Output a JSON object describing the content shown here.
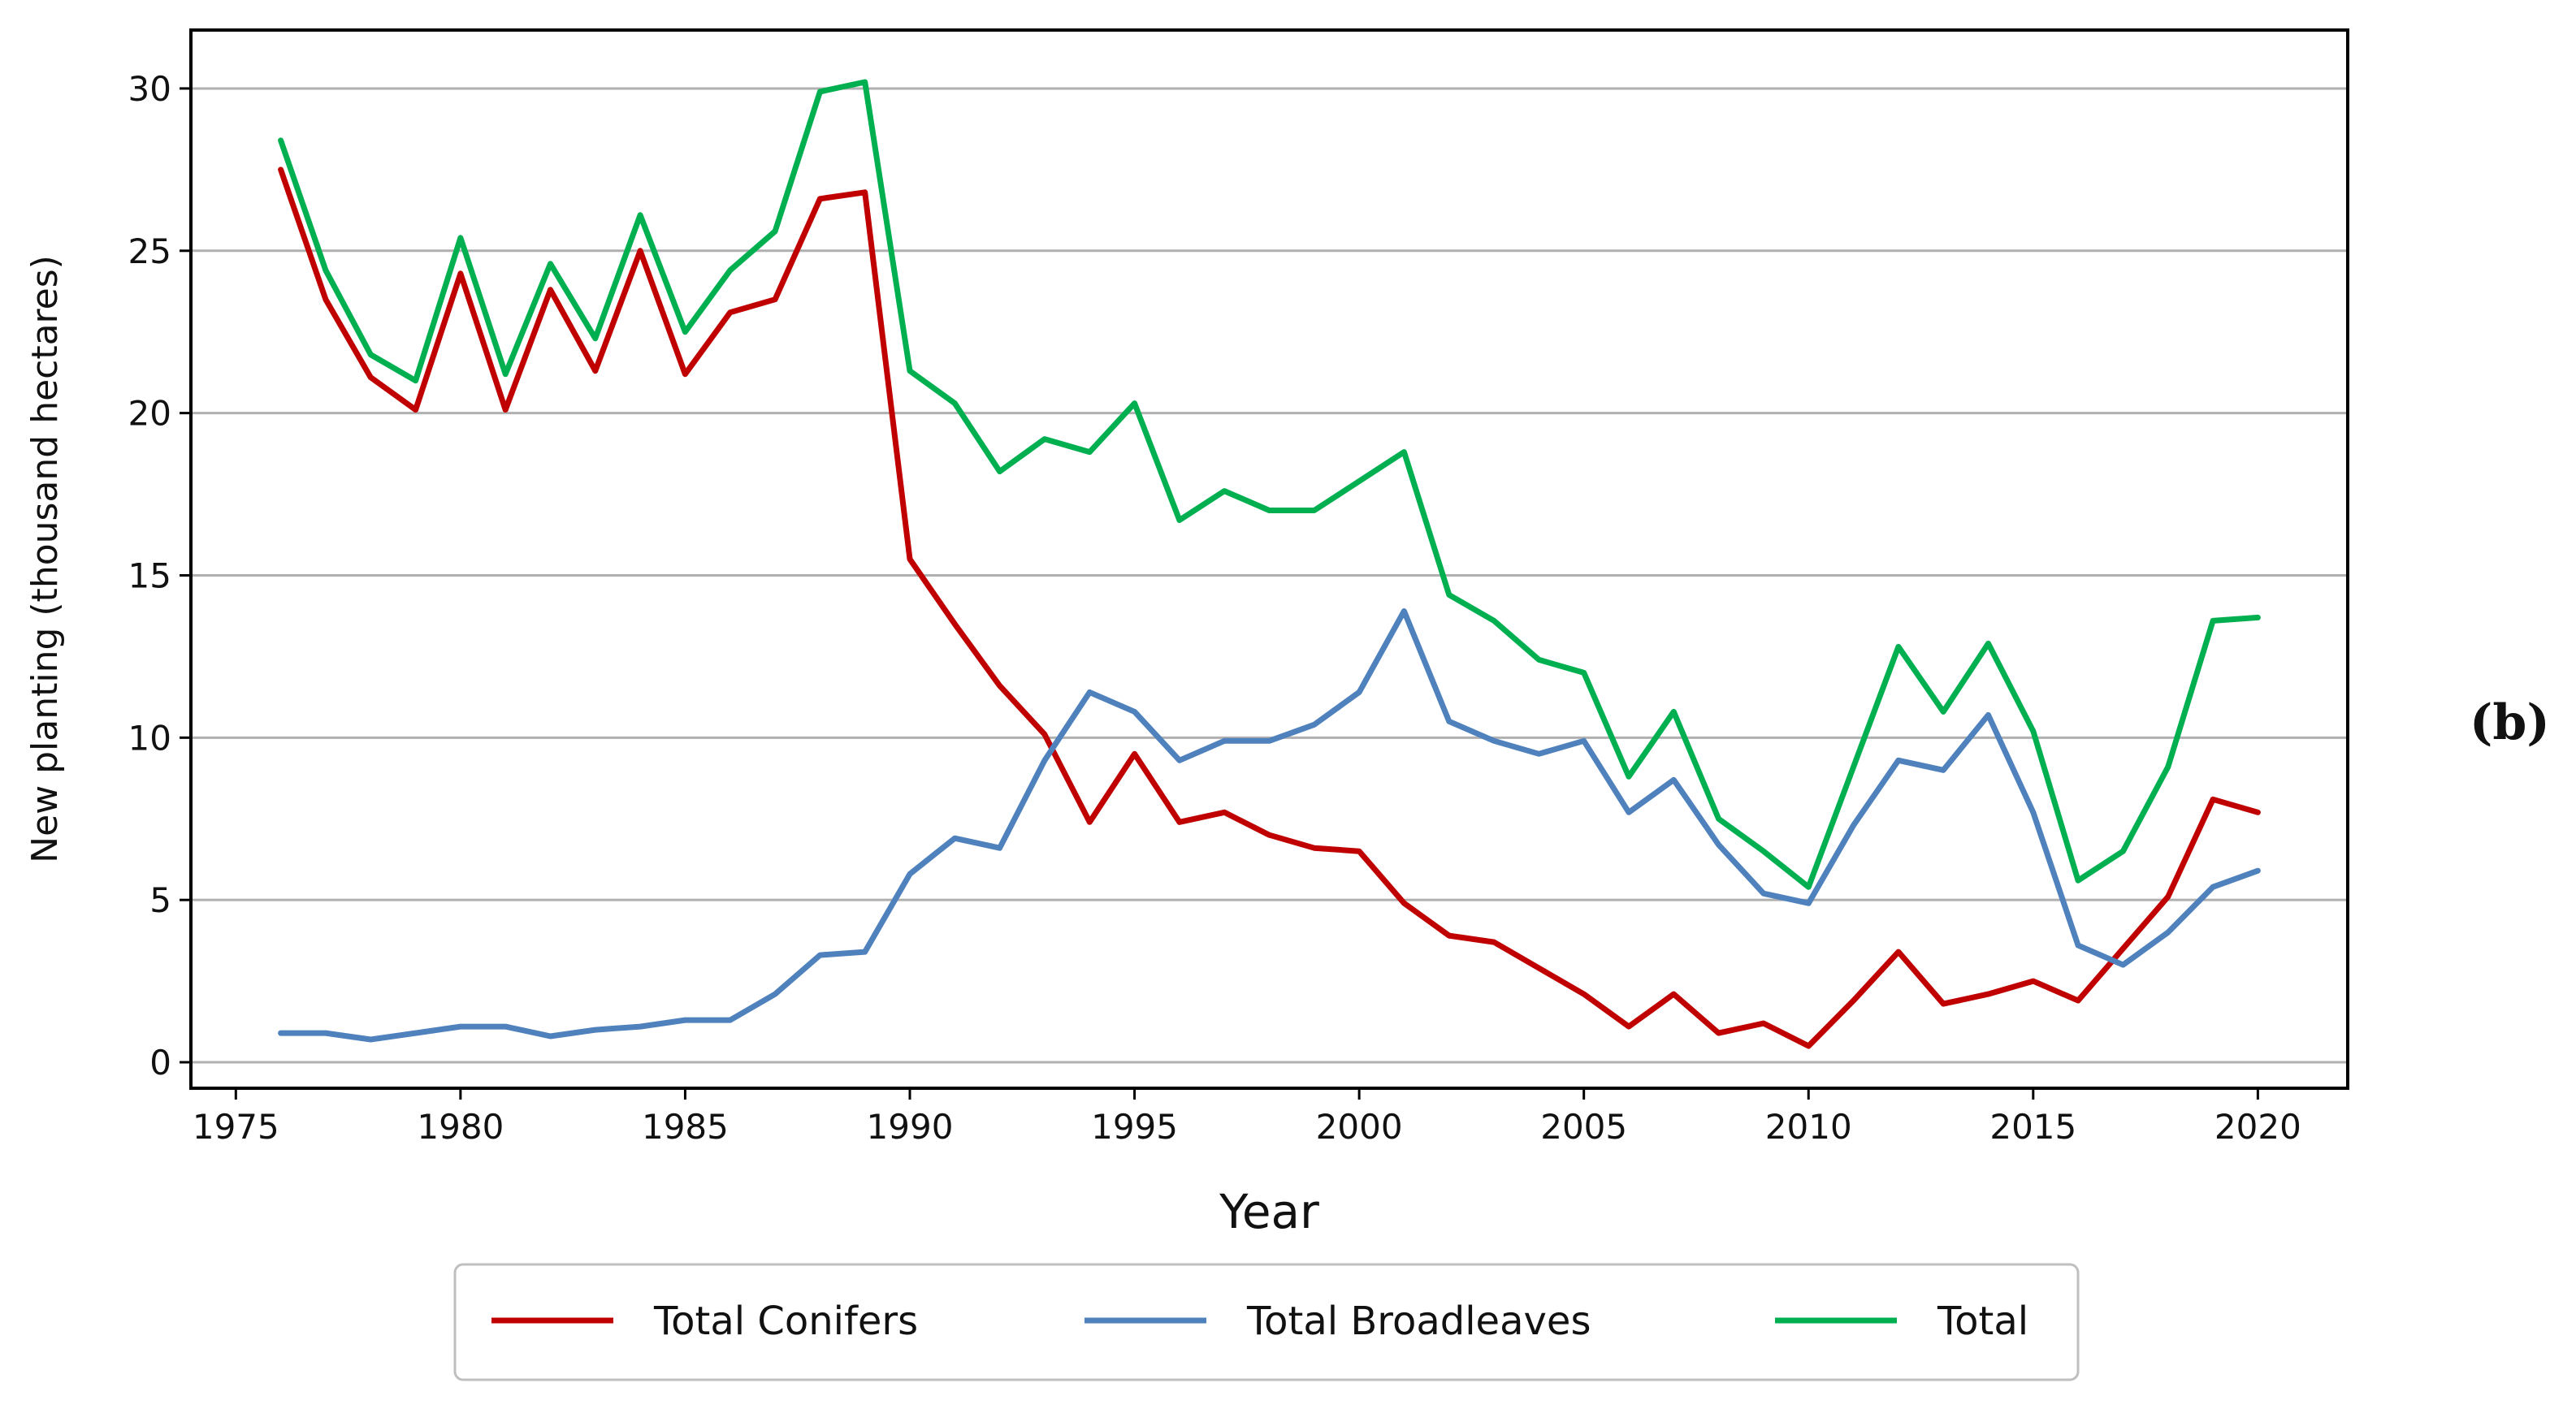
{
  "chart_data": {
    "type": "line",
    "title": "",
    "panel_label": "(b)",
    "xlabel": "Year",
    "ylabel": "New planting (thousand hectares)",
    "xlim": [
      1974,
      2022
    ],
    "ylim": [
      -0.8,
      31.8
    ],
    "xticks": [
      1975,
      1980,
      1985,
      1990,
      1995,
      2000,
      2005,
      2010,
      2015,
      2020
    ],
    "yticks": [
      0,
      5,
      10,
      15,
      20,
      25,
      30
    ],
    "grid": "horizontal",
    "legend_position": "bottom",
    "x": [
      1976,
      1977,
      1978,
      1979,
      1980,
      1981,
      1982,
      1983,
      1984,
      1985,
      1986,
      1987,
      1988,
      1989,
      1990,
      1991,
      1992,
      1993,
      1994,
      1995,
      1996,
      1997,
      1998,
      1999,
      2000,
      2001,
      2002,
      2003,
      2004,
      2005,
      2006,
      2007,
      2008,
      2009,
      2010,
      2011,
      2012,
      2013,
      2014,
      2015,
      2016,
      2017,
      2018,
      2019,
      2020
    ],
    "series": [
      {
        "name": "Total Conifers",
        "color": "#c00000",
        "values": [
          27.5,
          23.5,
          21.1,
          20.1,
          24.3,
          20.1,
          23.8,
          21.3,
          25.0,
          21.2,
          23.1,
          23.5,
          26.6,
          26.8,
          15.5,
          13.5,
          11.6,
          10.1,
          7.4,
          9.5,
          7.4,
          7.7,
          7.0,
          6.6,
          6.5,
          4.9,
          3.9,
          3.7,
          2.9,
          2.1,
          1.1,
          2.1,
          0.9,
          1.2,
          0.5,
          1.9,
          3.4,
          1.8,
          2.1,
          2.5,
          1.9,
          3.5,
          5.1,
          8.1,
          7.7
        ]
      },
      {
        "name": "Total Broadleaves",
        "color": "#4f81bd",
        "values": [
          0.9,
          0.9,
          0.7,
          0.9,
          1.1,
          1.1,
          0.8,
          1.0,
          1.1,
          1.3,
          1.3,
          2.1,
          3.3,
          3.4,
          5.8,
          6.9,
          6.6,
          9.3,
          11.4,
          10.8,
          9.3,
          9.9,
          9.9,
          10.4,
          11.4,
          13.9,
          10.5,
          9.9,
          9.5,
          9.9,
          7.7,
          8.7,
          6.7,
          5.2,
          4.9,
          7.3,
          9.3,
          9.0,
          10.7,
          7.7,
          3.6,
          3.0,
          4.0,
          5.4,
          5.9
        ]
      },
      {
        "name": "Total",
        "color": "#00b050",
        "values": [
          28.4,
          24.4,
          21.8,
          21.0,
          25.4,
          21.2,
          24.6,
          22.3,
          26.1,
          22.5,
          24.4,
          25.6,
          29.9,
          30.2,
          21.3,
          20.3,
          18.2,
          19.2,
          18.8,
          20.3,
          16.7,
          17.6,
          17.0,
          17.0,
          17.9,
          18.8,
          14.4,
          13.6,
          12.4,
          12.0,
          8.8,
          10.8,
          7.5,
          6.5,
          5.4,
          9.1,
          12.8,
          10.8,
          12.9,
          10.2,
          5.6,
          6.5,
          9.1,
          13.6,
          13.7
        ]
      }
    ]
  }
}
